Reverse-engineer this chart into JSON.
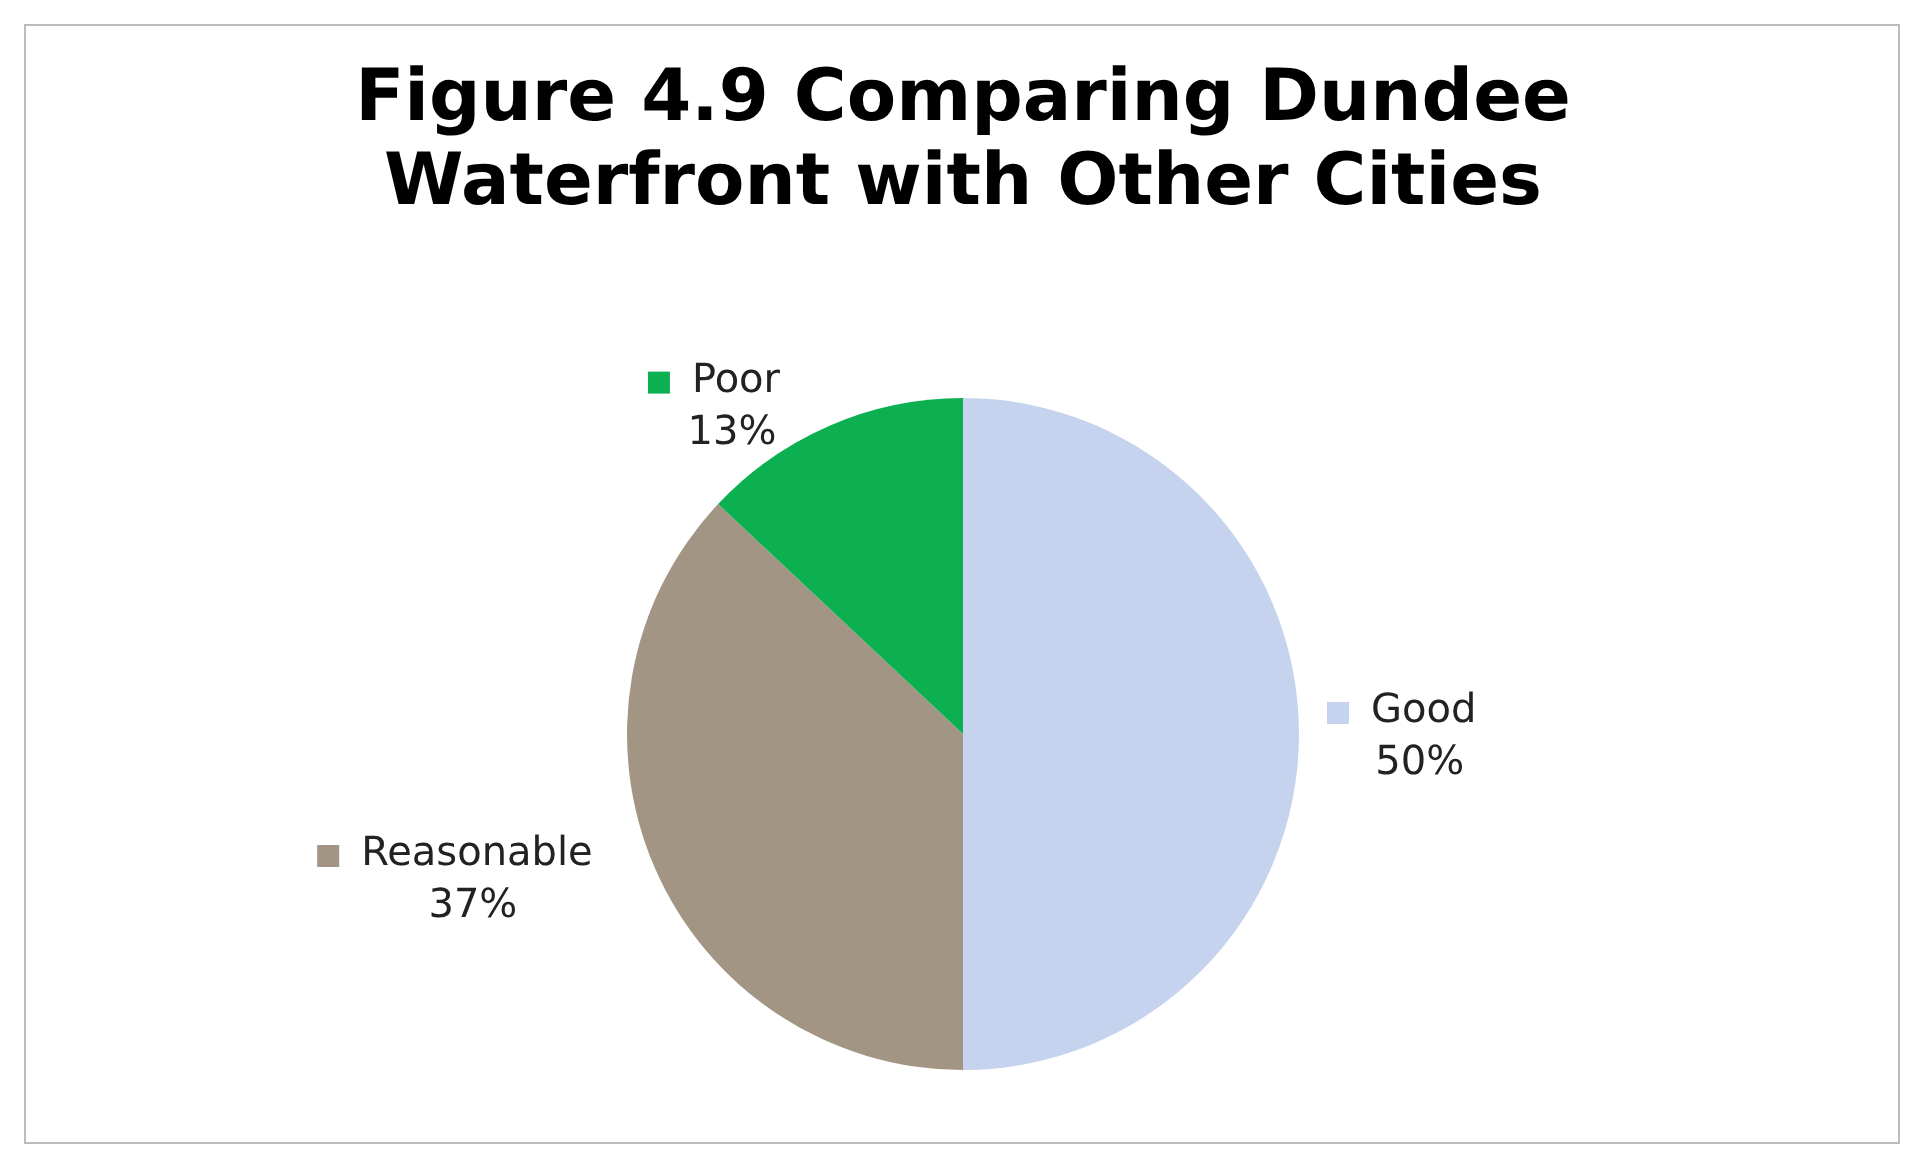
{
  "chart_data": {
    "type": "pie",
    "title": "Figure 4.9 Comparing Dundee Waterfront  with Other Cities",
    "categories": [
      "Good",
      "Reasonable",
      "Poor"
    ],
    "values": [
      50,
      37,
      13
    ],
    "colors": [
      "#c5d3ee",
      "#a39584",
      "#0cb050"
    ],
    "value_labels": [
      "50%",
      "37%",
      "13%"
    ],
    "legend": "left"
  }
}
